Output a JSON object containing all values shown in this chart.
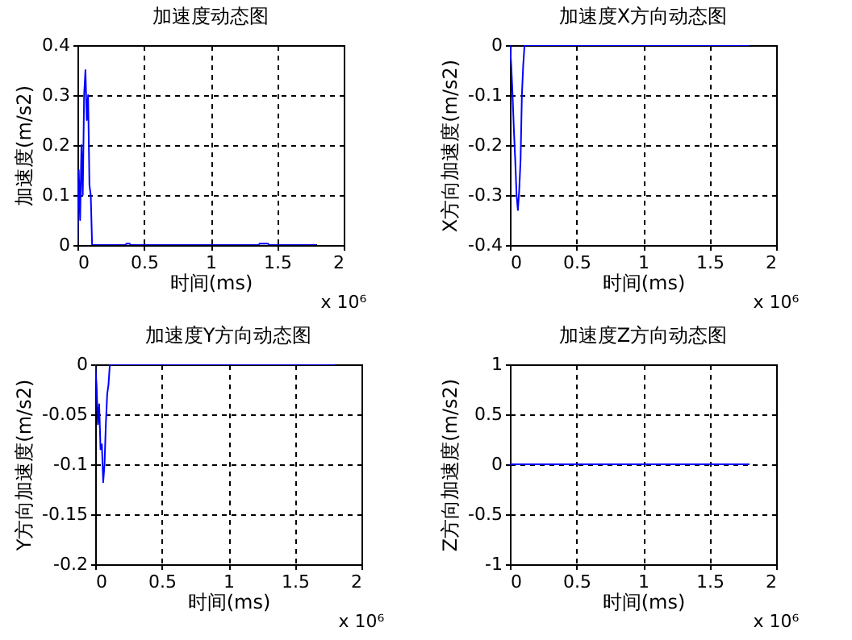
{
  "chart_data": [
    {
      "type": "line",
      "title": "加速度动态图",
      "xlabel": "时间(ms)",
      "ylabel": "加速度(m/s2)",
      "xlim": [
        0,
        2
      ],
      "xticks": [
        0,
        0.5,
        1,
        1.5,
        2
      ],
      "ylim": [
        0,
        0.4
      ],
      "yticks": [
        0,
        0.1,
        0.2,
        0.3,
        0.4
      ],
      "grid": true,
      "annotations": [
        "x 10⁶"
      ],
      "x": [
        0,
        0.01,
        0.02,
        0.03,
        0.04,
        0.05,
        0.06,
        0.07,
        0.08,
        0.09,
        0.1,
        0.11,
        0.36,
        0.37,
        0.39,
        0.4,
        1.36,
        1.37,
        1.43,
        1.44,
        1.8
      ],
      "series": [
        {
          "color": "#0000ff",
          "values": [
            0,
            0.15,
            0.05,
            0.2,
            0.1,
            0.3,
            0.35,
            0.25,
            0.3,
            0.12,
            0.1,
            0,
            0,
            0.003,
            0.003,
            0,
            0,
            0.003,
            0.003,
            0,
            0
          ]
        }
      ]
    },
    {
      "type": "line",
      "title": "加速度X方向动态图",
      "xlabel": "时间(ms)",
      "ylabel": "X方向加速度(m/s2)",
      "xlim": [
        0,
        2
      ],
      "xticks": [
        0,
        0.5,
        1,
        1.5,
        2
      ],
      "ylim": [
        -0.4,
        0
      ],
      "yticks": [
        -0.4,
        -0.3,
        -0.2,
        -0.1,
        0
      ],
      "grid": true,
      "annotations": [
        "x 10⁶"
      ],
      "x": [
        0,
        0.01,
        0.02,
        0.03,
        0.04,
        0.05,
        0.06,
        0.07,
        0.08,
        0.09,
        0.1,
        0.11,
        1.8
      ],
      "series": [
        {
          "color": "#0000ff",
          "values": [
            0,
            -0.04,
            -0.1,
            -0.17,
            -0.23,
            -0.3,
            -0.33,
            -0.29,
            -0.23,
            -0.1,
            -0.04,
            0,
            0
          ]
        }
      ]
    },
    {
      "type": "line",
      "title": "加速度Y方向动态图",
      "xlabel": "时间(ms)",
      "ylabel": "Y方向加速度(m/s2)",
      "xlim": [
        0,
        2
      ],
      "xticks": [
        0,
        0.5,
        1,
        1.5,
        2
      ],
      "ylim": [
        -0.2,
        0
      ],
      "yticks": [
        -0.2,
        -0.15,
        -0.1,
        -0.05,
        0
      ],
      "grid": true,
      "annotations": [
        "x 10⁶"
      ],
      "x": [
        0,
        0.01,
        0.02,
        0.03,
        0.04,
        0.05,
        0.06,
        0.07,
        0.08,
        0.09,
        0.1,
        0.11,
        1.8
      ],
      "series": [
        {
          "color": "#0000ff",
          "values": [
            0,
            -0.02,
            -0.06,
            -0.04,
            -0.085,
            -0.08,
            -0.118,
            -0.1,
            -0.06,
            -0.03,
            -0.02,
            0,
            0
          ]
        }
      ]
    },
    {
      "type": "line",
      "title": "加速度Z方向动态图",
      "xlabel": "时间(ms)",
      "ylabel": "Z方向加速度(m/s2)",
      "xlim": [
        0,
        2
      ],
      "xticks": [
        0,
        0.5,
        1,
        1.5,
        2
      ],
      "ylim": [
        -1,
        1
      ],
      "yticks": [
        -1,
        -0.5,
        0,
        0.5,
        1
      ],
      "grid": true,
      "annotations": [
        "x 10⁶"
      ],
      "x": [
        0,
        1.8
      ],
      "series": [
        {
          "color": "#0000ff",
          "values": [
            0,
            0
          ]
        }
      ]
    }
  ]
}
